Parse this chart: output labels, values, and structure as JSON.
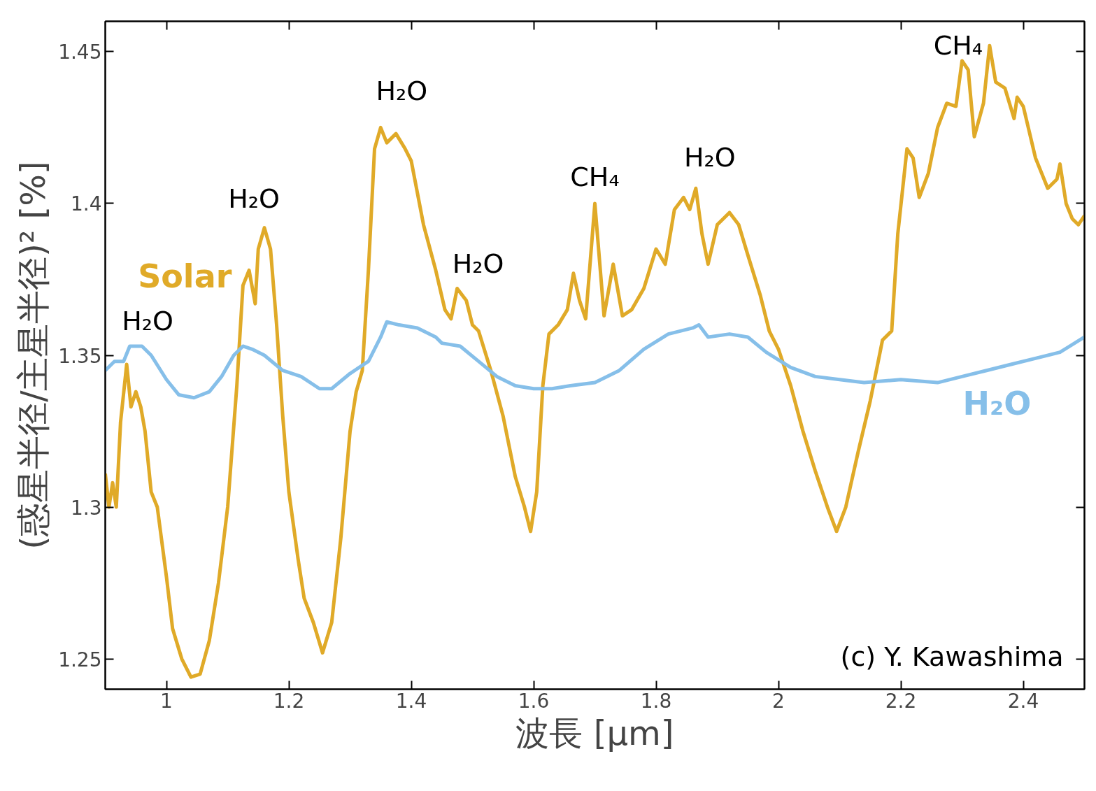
{
  "chart_data": {
    "type": "line",
    "xlabel": "波長 [μm]",
    "ylabel": "(惑星半径/主星半径)² [%]",
    "xlim": [
      0.9,
      2.5
    ],
    "ylim": [
      1.24,
      1.46
    ],
    "xticks": [
      1,
      1.2,
      1.4,
      1.6,
      1.8,
      2,
      2.2,
      2.4
    ],
    "yticks": [
      1.25,
      1.3,
      1.35,
      1.4,
      1.45
    ],
    "grid": false,
    "marker": "none",
    "line_style": "solid",
    "series": [
      {
        "name": "Solar",
        "color": "#e0aa28",
        "x": [
          0.9,
          0.906,
          0.912,
          0.918,
          0.925,
          0.935,
          0.942,
          0.95,
          0.958,
          0.965,
          0.975,
          0.985,
          1.0,
          1.01,
          1.025,
          1.04,
          1.055,
          1.07,
          1.085,
          1.1,
          1.115,
          1.125,
          1.135,
          1.145,
          1.15,
          1.16,
          1.17,
          1.18,
          1.19,
          1.2,
          1.215,
          1.225,
          1.24,
          1.255,
          1.27,
          1.285,
          1.3,
          1.31,
          1.32,
          1.33,
          1.34,
          1.35,
          1.36,
          1.375,
          1.39,
          1.4,
          1.42,
          1.44,
          1.455,
          1.465,
          1.475,
          1.49,
          1.5,
          1.51,
          1.53,
          1.55,
          1.57,
          1.585,
          1.595,
          1.605,
          1.615,
          1.625,
          1.64,
          1.655,
          1.665,
          1.675,
          1.685,
          1.7,
          1.715,
          1.73,
          1.745,
          1.76,
          1.78,
          1.8,
          1.815,
          1.83,
          1.845,
          1.855,
          1.865,
          1.875,
          1.885,
          1.9,
          1.92,
          1.935,
          1.95,
          1.97,
          1.985,
          2.0,
          2.02,
          2.04,
          2.06,
          2.08,
          2.095,
          2.11,
          2.13,
          2.15,
          2.17,
          2.185,
          2.195,
          2.21,
          2.22,
          2.23,
          2.245,
          2.26,
          2.275,
          2.29,
          2.3,
          2.31,
          2.32,
          2.335,
          2.345,
          2.355,
          2.37,
          2.385,
          2.39,
          2.4,
          2.42,
          2.44,
          2.455,
          2.46,
          2.47,
          2.48,
          2.49,
          2.5
        ],
        "values": [
          1.311,
          1.3,
          1.308,
          1.3,
          1.328,
          1.347,
          1.333,
          1.338,
          1.333,
          1.325,
          1.305,
          1.3,
          1.277,
          1.26,
          1.25,
          1.244,
          1.245,
          1.256,
          1.275,
          1.3,
          1.34,
          1.373,
          1.378,
          1.367,
          1.385,
          1.392,
          1.385,
          1.36,
          1.33,
          1.305,
          1.283,
          1.27,
          1.262,
          1.252,
          1.262,
          1.29,
          1.325,
          1.338,
          1.345,
          1.378,
          1.418,
          1.425,
          1.42,
          1.423,
          1.418,
          1.414,
          1.393,
          1.378,
          1.365,
          1.362,
          1.372,
          1.368,
          1.36,
          1.358,
          1.345,
          1.33,
          1.31,
          1.3,
          1.292,
          1.305,
          1.34,
          1.357,
          1.36,
          1.365,
          1.377,
          1.368,
          1.362,
          1.4,
          1.363,
          1.38,
          1.363,
          1.365,
          1.372,
          1.385,
          1.38,
          1.398,
          1.402,
          1.398,
          1.405,
          1.39,
          1.38,
          1.393,
          1.397,
          1.393,
          1.383,
          1.37,
          1.358,
          1.352,
          1.34,
          1.325,
          1.312,
          1.3,
          1.292,
          1.3,
          1.318,
          1.335,
          1.355,
          1.358,
          1.39,
          1.418,
          1.415,
          1.402,
          1.41,
          1.425,
          1.433,
          1.432,
          1.447,
          1.444,
          1.422,
          1.433,
          1.452,
          1.44,
          1.438,
          1.428,
          1.435,
          1.432,
          1.415,
          1.405,
          1.408,
          1.413,
          1.4,
          1.395,
          1.393,
          1.396
        ]
      },
      {
        "name": "H₂O",
        "color": "#86bfe9",
        "x": [
          0.9,
          0.915,
          0.93,
          0.94,
          0.96,
          0.975,
          1.0,
          1.02,
          1.045,
          1.07,
          1.09,
          1.11,
          1.125,
          1.14,
          1.16,
          1.19,
          1.22,
          1.25,
          1.27,
          1.3,
          1.33,
          1.35,
          1.36,
          1.38,
          1.41,
          1.44,
          1.45,
          1.48,
          1.51,
          1.54,
          1.57,
          1.6,
          1.63,
          1.66,
          1.7,
          1.74,
          1.78,
          1.82,
          1.86,
          1.87,
          1.885,
          1.92,
          1.95,
          1.98,
          2.02,
          2.06,
          2.1,
          2.14,
          2.2,
          2.26,
          2.3,
          2.34,
          2.38,
          2.42,
          2.46,
          2.5
        ],
        "values": [
          1.345,
          1.348,
          1.348,
          1.353,
          1.353,
          1.35,
          1.342,
          1.337,
          1.336,
          1.338,
          1.343,
          1.35,
          1.353,
          1.352,
          1.35,
          1.345,
          1.343,
          1.339,
          1.339,
          1.344,
          1.348,
          1.356,
          1.361,
          1.36,
          1.359,
          1.356,
          1.354,
          1.353,
          1.348,
          1.343,
          1.34,
          1.339,
          1.339,
          1.34,
          1.341,
          1.345,
          1.352,
          1.357,
          1.359,
          1.36,
          1.356,
          1.357,
          1.356,
          1.351,
          1.346,
          1.343,
          1.342,
          1.341,
          1.342,
          1.341,
          1.343,
          1.345,
          1.347,
          1.349,
          1.351,
          1.356
        ]
      }
    ],
    "annotations": [
      {
        "text": "H₂O",
        "x": 0.935,
        "y": 1.347
      },
      {
        "text": "H₂O",
        "x": 1.16,
        "y": 1.392
      },
      {
        "text": "H₂O",
        "x": 1.35,
        "y": 1.425
      },
      {
        "text": "H₂O",
        "x": 1.475,
        "y": 1.372
      },
      {
        "text": "CH₄",
        "x": 1.7,
        "y": 1.4
      },
      {
        "text": "H₂O",
        "x": 1.865,
        "y": 1.405
      },
      {
        "text": "CH₄",
        "x": 2.345,
        "y": 1.452
      },
      "(c) Y. Kawashima"
    ]
  }
}
